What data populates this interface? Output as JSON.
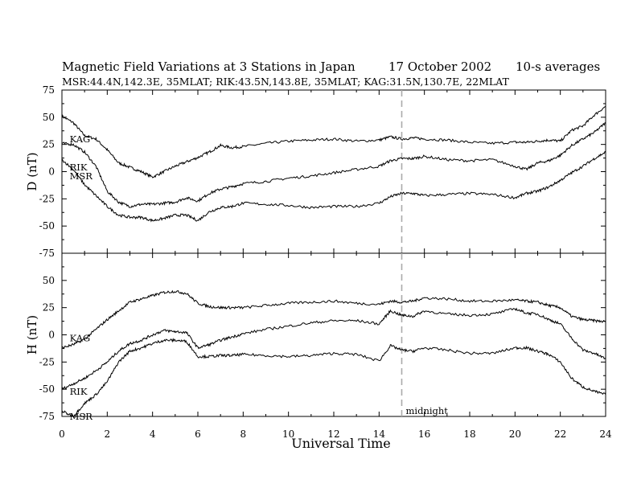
{
  "chart_data": {
    "type": "line",
    "title": {
      "main": "Magnetic Field Variations at 3 Stations in Japan",
      "date": "17 October 2002",
      "averaging": "10-s averages"
    },
    "subtitle": "MSR:44.4N,142.3E, 35MLAT;  RIK:43.5N,143.8E, 35MLAT;  KAG:31.5N,130.7E, 22MLAT",
    "xlabel": "Universal Time",
    "xlim": [
      0,
      24
    ],
    "xticks": [
      "0",
      "2",
      "4",
      "6",
      "8",
      "10",
      "12",
      "14",
      "16",
      "18",
      "20",
      "22",
      "24"
    ],
    "xtick_values": [
      0,
      2,
      4,
      6,
      8,
      10,
      12,
      14,
      16,
      18,
      20,
      22,
      24
    ],
    "grid": false,
    "marker_line": {
      "x": 15,
      "style": "dashed",
      "color": "#aaaaaa",
      "label": "midnight"
    },
    "panels": [
      {
        "ylabel": "D (nT)",
        "ylim": [
          -75,
          75
        ],
        "yticks": [
          "75",
          "50",
          "25",
          "0",
          "-25",
          "-50",
          "-75"
        ],
        "ytick_values": [
          75,
          50,
          25,
          0,
          -25,
          -50,
          -75
        ],
        "series": [
          {
            "name": "KAG",
            "label_at": [
              0.2,
              27
            ],
            "x": [
              0,
              0.5,
              1,
              1.5,
              2,
              2.5,
              3,
              3.5,
              4,
              4.5,
              5,
              5.5,
              6,
              6.5,
              7,
              7.5,
              8,
              9,
              10,
              11,
              12,
              13,
              14,
              14.5,
              15,
              15.5,
              16,
              17,
              18,
              19,
              20,
              20.5,
              21,
              21.5,
              22,
              22.5,
              23,
              23.5,
              24
            ],
            "y": [
              51,
              45,
              33,
              30,
              20,
              8,
              4,
              0,
              -5,
              0,
              5,
              9,
              13,
              18,
              24,
              22,
              23,
              26,
              28,
              29,
              30,
              28,
              29,
              32,
              30,
              31,
              30,
              29,
              27,
              26,
              27,
              27,
              28,
              29,
              28,
              38,
              42,
              52,
              60
            ]
          },
          {
            "name": "RIK",
            "label_at": [
              0.2,
              1
            ],
            "x": [
              0,
              0.5,
              1,
              1.5,
              2,
              2.5,
              3,
              3.5,
              4,
              4.5,
              5,
              5.5,
              6,
              6.5,
              7,
              7.5,
              8,
              9,
              10,
              11,
              12,
              13,
              14,
              14.5,
              15,
              15.5,
              16,
              17,
              18,
              19,
              20,
              20.5,
              21,
              21.5,
              22,
              22.5,
              23,
              23.5,
              24
            ],
            "y": [
              26,
              25,
              18,
              5,
              -18,
              -28,
              -32,
              -30,
              -30,
              -29,
              -28,
              -24,
              -27,
              -20,
              -16,
              -14,
              -11,
              -9,
              -6,
              -4,
              -1,
              2,
              5,
              10,
              12,
              12,
              14,
              11,
              10,
              11,
              5,
              2,
              8,
              10,
              15,
              24,
              30,
              36,
              45
            ]
          },
          {
            "name": "MSR",
            "label_at": [
              0.2,
              -7
            ],
            "x": [
              0,
              0.5,
              1,
              1.5,
              2,
              2.5,
              3,
              3.5,
              4,
              4.5,
              5,
              5.5,
              6,
              6.5,
              7,
              7.5,
              8,
              9,
              10,
              11,
              12,
              13,
              14,
              14.5,
              15,
              15.5,
              16,
              17,
              18,
              19,
              20,
              20.5,
              21,
              21.5,
              22,
              22.5,
              23,
              23.5,
              24
            ],
            "y": [
              11,
              2,
              -12,
              -22,
              -32,
              -40,
              -42,
              -42,
              -45,
              -43,
              -40,
              -40,
              -45,
              -37,
              -33,
              -32,
              -29,
              -30,
              -31,
              -33,
              -32,
              -32,
              -29,
              -23,
              -20,
              -20,
              -22,
              -21,
              -20,
              -21,
              -24,
              -20,
              -18,
              -14,
              -8,
              -1,
              5,
              12,
              18
            ]
          }
        ]
      },
      {
        "ylabel": "H (nT)",
        "ylim": [
          -75,
          75
        ],
        "yticks": [
          "75",
          "50",
          "25",
          "0",
          "-25",
          "-50",
          "-75"
        ],
        "ytick_values": [
          75,
          50,
          25,
          0,
          -25,
          -50,
          -75
        ],
        "series": [
          {
            "name": "KAG",
            "label_at": [
              0.2,
              -6
            ],
            "x": [
              0,
              0.5,
              1,
              1.5,
              2,
              2.5,
              3,
              3.5,
              4,
              4.5,
              5,
              5.5,
              6,
              6.5,
              7,
              7.5,
              8,
              9,
              10,
              11,
              12,
              13,
              14,
              14.5,
              15,
              15.5,
              16,
              17,
              18,
              19,
              20,
              20.5,
              21,
              21.5,
              22,
              22.5,
              23,
              23.5,
              24
            ],
            "y": [
              -12,
              -9,
              -4,
              5,
              14,
              22,
              30,
              33,
              36,
              39,
              40,
              38,
              29,
              26,
              25,
              25,
              25,
              27,
              29,
              30,
              31,
              29,
              28,
              31,
              30,
              31,
              34,
              33,
              31,
              31,
              32,
              31,
              30,
              27,
              25,
              17,
              14,
              13,
              12
            ]
          },
          {
            "name": "RIK",
            "label_at": [
              0.2,
              -55
            ],
            "x": [
              0,
              0.5,
              1,
              1.5,
              2,
              2.5,
              3,
              3.5,
              4,
              4.5,
              5,
              5.5,
              6,
              6.5,
              7,
              7.5,
              8,
              9,
              10,
              11,
              12,
              13,
              14,
              14.5,
              15,
              15.5,
              16,
              17,
              18,
              19,
              20,
              20.5,
              21,
              21.5,
              22,
              22.5,
              23,
              23.5,
              24
            ],
            "y": [
              -50,
              -45,
              -40,
              -33,
              -25,
              -15,
              -8,
              -5,
              0,
              4,
              3,
              2,
              -12,
              -9,
              -5,
              -2,
              1,
              5,
              8,
              11,
              13,
              13,
              10,
              22,
              18,
              17,
              22,
              19,
              18,
              19,
              24,
              20,
              19,
              14,
              10,
              -3,
              -14,
              -17,
              -22
            ]
          },
          {
            "name": "MSR",
            "label_at": [
              0.2,
              -78
            ],
            "x": [
              0,
              0.5,
              1,
              1.5,
              2,
              2.5,
              3,
              3.5,
              4,
              4.5,
              5,
              5.5,
              6,
              6.5,
              7,
              7.5,
              8,
              9,
              10,
              11,
              12,
              13,
              14,
              14.5,
              15,
              15.5,
              16,
              17,
              18,
              19,
              20,
              20.5,
              21,
              21.5,
              22,
              22.5,
              23,
              23.5,
              24
            ],
            "y": [
              -70,
              -75,
              -63,
              -55,
              -43,
              -25,
              -15,
              -12,
              -8,
              -5,
              -5,
              -6,
              -20,
              -20,
              -19,
              -19,
              -18,
              -19,
              -20,
              -19,
              -17,
              -18,
              -24,
              -10,
              -14,
              -15,
              -12,
              -14,
              -17,
              -17,
              -12,
              -12,
              -15,
              -18,
              -25,
              -40,
              -48,
              -52,
              -55
            ]
          }
        ]
      }
    ]
  }
}
